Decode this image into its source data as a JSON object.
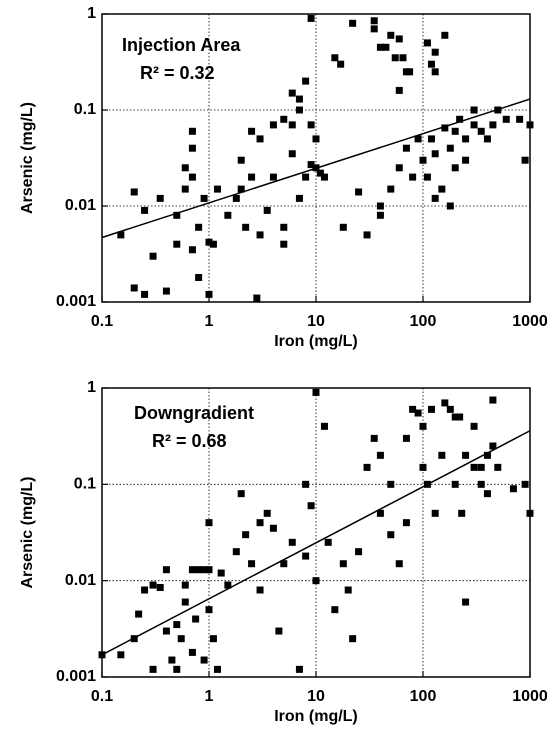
{
  "chart_data": [
    {
      "type": "scatter",
      "x_label": "Iron (mg/L)",
      "y_label": "Arsenic (mg/L)",
      "annotations": [
        "Injection Area",
        "R² = 0.32"
      ],
      "log_x": true,
      "log_y": true,
      "grid": true,
      "color": "#000000",
      "xlim": [
        0.1,
        1000
      ],
      "ylim": [
        0.001,
        1
      ],
      "xticks": [
        0.1,
        1,
        10,
        100,
        1000
      ],
      "yticks": [
        0.001,
        0.01,
        0.1,
        1
      ],
      "x": [
        9,
        22,
        35,
        35,
        40,
        45,
        50,
        55,
        60,
        65,
        70,
        75,
        60,
        110,
        120,
        130,
        130,
        160,
        15,
        17,
        4,
        5,
        6,
        6,
        7,
        8,
        9,
        3,
        2.5,
        7,
        2,
        0.7,
        0.7,
        0.6,
        0.15,
        0.2,
        0.25,
        0.3,
        0.35,
        0.2,
        0.25,
        0.4,
        0.5,
        0.5,
        0.6,
        0.7,
        0.7,
        0.8,
        0.8,
        0.9,
        1,
        1,
        1.1,
        1.2,
        1.5,
        1.8,
        2,
        2.2,
        2.5,
        2.8,
        3,
        3.5,
        4,
        5,
        5,
        6,
        7,
        8,
        9,
        10,
        11,
        12,
        10,
        18,
        25,
        30,
        40,
        40,
        50,
        60,
        70,
        80,
        90,
        100,
        110,
        120,
        130,
        150,
        160,
        180,
        200,
        220,
        250,
        250,
        300,
        300,
        350,
        400,
        450,
        500,
        600,
        800,
        900,
        1000,
        200,
        180,
        130
      ],
      "values": [
        0.9,
        0.8,
        0.85,
        0.7,
        0.45,
        0.45,
        0.6,
        0.35,
        0.55,
        0.35,
        0.25,
        0.25,
        0.16,
        0.5,
        0.3,
        0.25,
        0.4,
        0.6,
        0.35,
        0.3,
        0.07,
        0.08,
        0.07,
        0.15,
        0.1,
        0.2,
        0.07,
        0.05,
        0.06,
        0.13,
        0.03,
        0.06,
        0.04,
        0.025,
        0.005,
        0.014,
        0.009,
        0.003,
        0.012,
        0.0014,
        0.0012,
        0.0013,
        0.008,
        0.004,
        0.015,
        0.02,
        0.0035,
        0.0018,
        0.006,
        0.012,
        0.0012,
        0.0042,
        0.004,
        0.015,
        0.008,
        0.012,
        0.015,
        0.006,
        0.02,
        0.0011,
        0.005,
        0.009,
        0.02,
        0.006,
        0.004,
        0.035,
        0.012,
        0.02,
        0.027,
        0.025,
        0.022,
        0.02,
        0.05,
        0.006,
        0.014,
        0.005,
        0.008,
        0.01,
        0.015,
        0.025,
        0.04,
        0.02,
        0.05,
        0.03,
        0.02,
        0.05,
        0.035,
        0.015,
        0.065,
        0.01,
        0.06,
        0.08,
        0.05,
        0.03,
        0.07,
        0.1,
        0.06,
        0.05,
        0.07,
        0.1,
        0.08,
        0.08,
        0.03,
        0.07,
        0.025,
        0.04,
        0.012
      ],
      "trend": {
        "x": [
          0.1,
          1000
        ],
        "y": [
          0.0047,
          0.13
        ]
      }
    },
    {
      "type": "scatter",
      "x_label": "Iron (mg/L)",
      "y_label": "Arsenic (mg/L)",
      "annotations": [
        "Downgradient",
        "R² = 0.68"
      ],
      "log_x": true,
      "log_y": true,
      "grid": true,
      "color": "#000000",
      "xlim": [
        0.1,
        1000
      ],
      "ylim": [
        0.001,
        1
      ],
      "xticks": [
        0.1,
        1,
        10,
        100,
        1000
      ],
      "yticks": [
        0.001,
        0.01,
        0.1,
        1
      ],
      "x": [
        0.1,
        0.15,
        0.2,
        0.22,
        0.25,
        0.3,
        0.3,
        0.35,
        0.4,
        0.4,
        0.45,
        0.5,
        0.5,
        0.55,
        0.6,
        0.6,
        0.7,
        0.7,
        0.75,
        0.8,
        0.9,
        0.9,
        1,
        1,
        1,
        1.1,
        1.2,
        1.3,
        1.5,
        1.8,
        2,
        2.2,
        2.5,
        3,
        3,
        3.5,
        4,
        4.5,
        5,
        6,
        7,
        8,
        8,
        9,
        10,
        10,
        12,
        13,
        15,
        18,
        20,
        22,
        25,
        30,
        35,
        40,
        40,
        50,
        50,
        60,
        70,
        70,
        80,
        90,
        100,
        100,
        110,
        120,
        130,
        150,
        160,
        180,
        200,
        200,
        220,
        230,
        250,
        250,
        300,
        300,
        350,
        400,
        450,
        450,
        500,
        700,
        1000,
        900,
        400,
        350
      ],
      "values": [
        0.0017,
        0.0017,
        0.0025,
        0.0045,
        0.008,
        0.009,
        0.0012,
        0.0085,
        0.013,
        0.003,
        0.0015,
        0.0012,
        0.0035,
        0.0025,
        0.006,
        0.009,
        0.013,
        0.0018,
        0.004,
        0.013,
        0.013,
        0.0015,
        0.04,
        0.013,
        0.005,
        0.0025,
        0.0012,
        0.012,
        0.009,
        0.02,
        0.08,
        0.03,
        0.015,
        0.04,
        0.008,
        0.05,
        0.035,
        0.003,
        0.015,
        0.025,
        0.0012,
        0.1,
        0.018,
        0.06,
        0.9,
        0.01,
        0.4,
        0.025,
        0.005,
        0.015,
        0.008,
        0.0025,
        0.02,
        0.15,
        0.3,
        0.2,
        0.05,
        0.1,
        0.03,
        0.015,
        0.3,
        0.04,
        0.6,
        0.55,
        0.4,
        0.15,
        0.1,
        0.6,
        0.05,
        0.2,
        0.7,
        0.6,
        0.5,
        0.1,
        0.5,
        0.05,
        0.2,
        0.006,
        0.15,
        0.4,
        0.1,
        0.2,
        0.75,
        0.25,
        0.15,
        0.09,
        0.05,
        0.1,
        0.08,
        0.15
      ],
      "trend": {
        "x": [
          0.1,
          1000
        ],
        "y": [
          0.0017,
          0.36
        ]
      }
    }
  ]
}
